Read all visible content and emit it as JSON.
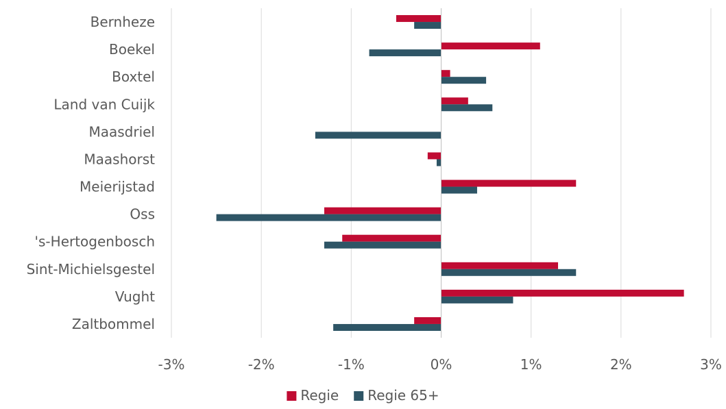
{
  "chart_data": {
    "type": "bar",
    "orientation": "horizontal",
    "categories": [
      "Bernheze",
      "Boekel",
      "Boxtel",
      "Land van Cuijk",
      "Maasdriel",
      "Maashorst",
      "Meierijstad",
      "Oss",
      "'s-Hertogenbosch",
      "Sint-Michielsgestel",
      "Vught",
      "Zaltbommel"
    ],
    "series": [
      {
        "name": "Regie",
        "color": "#c00c33",
        "values": [
          -0.5,
          1.1,
          0.1,
          0.3,
          0.0,
          -0.15,
          1.5,
          -1.3,
          -1.1,
          1.3,
          2.7,
          -0.3
        ]
      },
      {
        "name": "Regie 65+",
        "color": "#2e5566",
        "values": [
          -0.3,
          -0.8,
          0.5,
          0.57,
          -1.4,
          -0.05,
          0.4,
          -2.5,
          -1.3,
          1.5,
          0.8,
          -1.2
        ]
      }
    ],
    "xlim": [
      -3,
      3
    ],
    "xticks": [
      -3,
      -2,
      -1,
      0,
      1,
      2,
      3
    ],
    "xtick_labels": [
      "-3%",
      "-2%",
      "-1%",
      "0%",
      "1%",
      "2%",
      "3%"
    ],
    "grid": true,
    "legend": "bottom-center"
  }
}
